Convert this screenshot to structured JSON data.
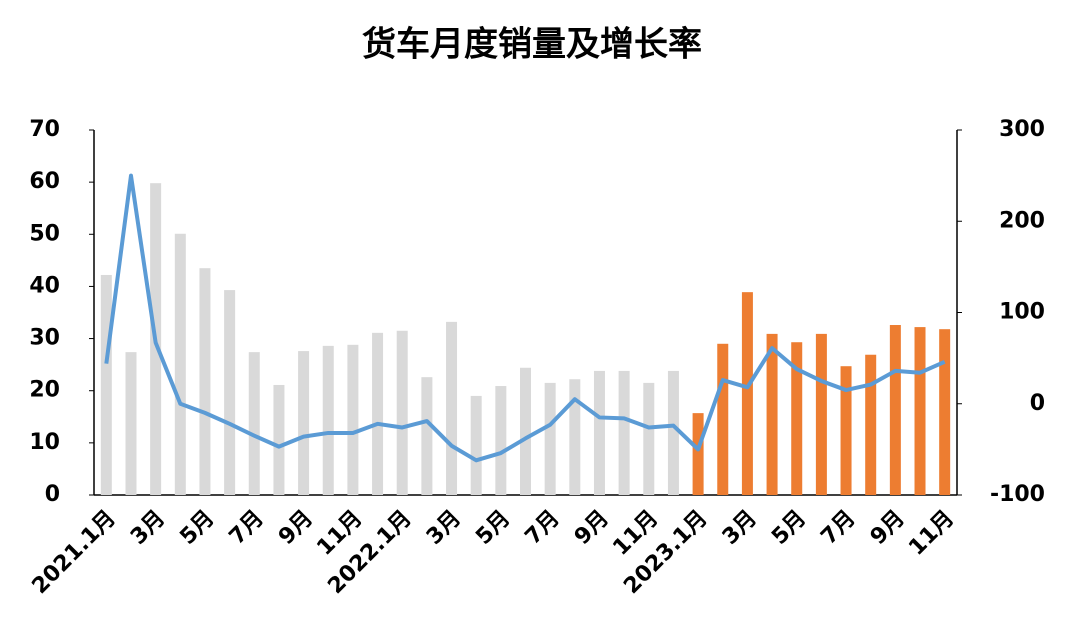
{
  "chart_data": {
    "type": "bar-line",
    "title": "货车月度销量及增长率",
    "categories": [
      "2021.1月",
      null,
      "3月",
      null,
      "5月",
      null,
      "7月",
      null,
      "9月",
      null,
      "11月",
      null,
      "2022.1月",
      null,
      "3月",
      null,
      "5月",
      null,
      "7月",
      null,
      "9月",
      null,
      "11月",
      null,
      "2023.1月",
      null,
      "3月",
      null,
      "5月",
      null,
      "7月",
      null,
      "9月",
      null,
      "11月"
    ],
    "series": [
      {
        "type": "bar",
        "color": "#d9d9d9",
        "values": [
          42.2,
          27.4,
          59.8,
          50.1,
          43.5,
          39.3,
          27.4,
          21.1,
          27.6,
          28.6,
          28.8,
          31.1,
          31.5,
          22.6,
          33.2,
          19.0,
          20.9,
          24.4,
          21.5,
          22.2,
          23.8,
          23.8,
          21.5,
          23.8,
          null,
          null,
          null,
          null,
          null,
          null,
          null,
          null,
          null,
          null,
          null
        ]
      },
      {
        "type": "bar",
        "color": "#ed7d31",
        "values": [
          null,
          null,
          null,
          null,
          null,
          null,
          null,
          null,
          null,
          null,
          null,
          null,
          null,
          null,
          null,
          null,
          null,
          null,
          null,
          null,
          null,
          null,
          null,
          null,
          15.7,
          29.0,
          38.9,
          30.9,
          29.3,
          30.9,
          24.7,
          26.9,
          32.6,
          32.2,
          31.8
        ]
      },
      {
        "type": "line",
        "axis": "y2",
        "color": "#5b9bd5",
        "values": [
          44,
          250,
          67,
          0,
          -10,
          -22,
          -35,
          -47,
          -36,
          -32,
          -32,
          -22,
          -26,
          -19,
          -46,
          -62,
          -54,
          -38,
          -23,
          5,
          -15,
          -16,
          -26,
          -24,
          -50,
          26,
          18,
          61,
          38,
          25,
          15,
          21,
          36,
          34,
          46
        ]
      }
    ],
    "ylim": [
      0,
      70
    ],
    "yticks": [
      0,
      10,
      20,
      30,
      40,
      50,
      60,
      70
    ],
    "y2lim": [
      -100,
      300
    ],
    "y2ticks": [
      -100,
      0,
      100,
      200,
      300
    ]
  }
}
